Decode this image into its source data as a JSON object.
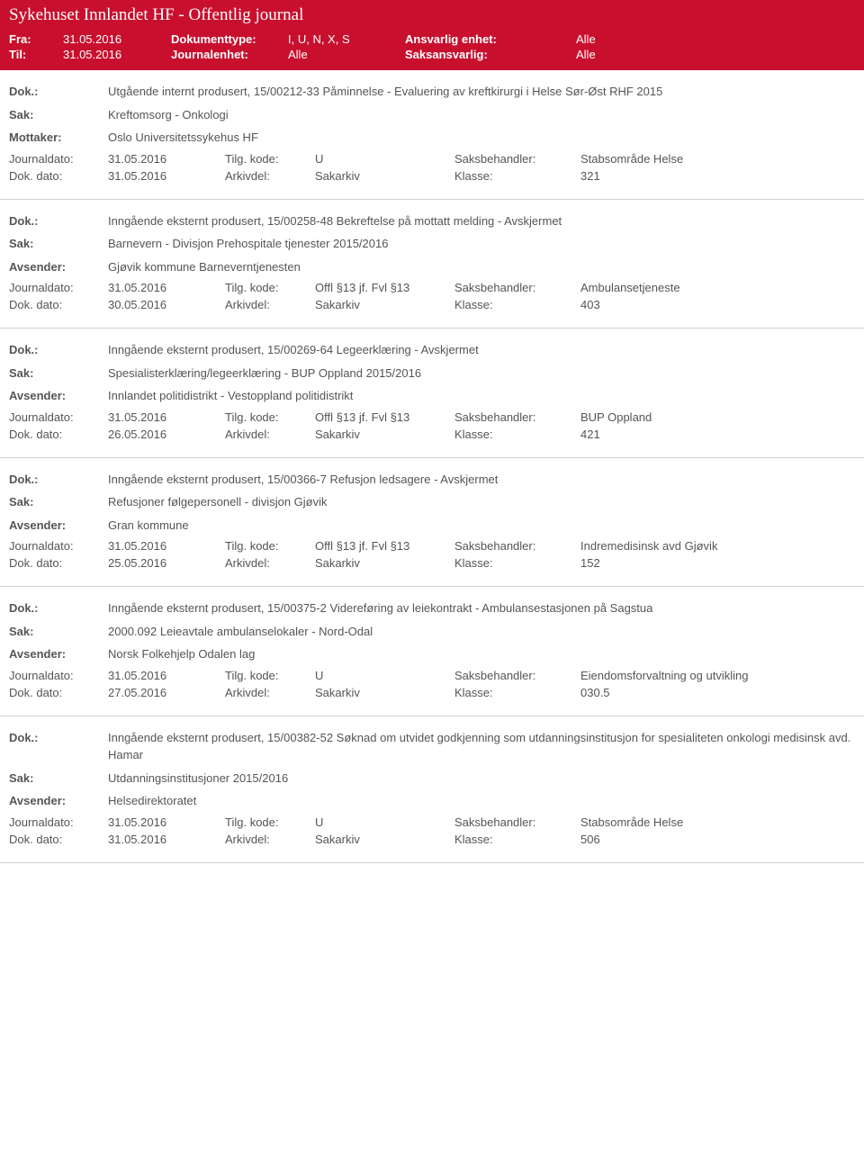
{
  "header": {
    "title": "Sykehuset Innlandet HF - Offentlig journal",
    "fra_label": "Fra:",
    "fra_val": "31.05.2016",
    "til_label": "Til:",
    "til_val": "31.05.2016",
    "dokumenttype_label": "Dokumenttype:",
    "dokumenttype_val": "I, U, N, X, S",
    "journalenhet_label": "Journalenhet:",
    "journalenhet_val": "Alle",
    "ansvarlig_label": "Ansvarlig enhet:",
    "ansvarlig_val": "Alle",
    "saksansvarlig_label": "Saksansvarlig:",
    "saksansvarlig_val": "Alle"
  },
  "labels": {
    "dok": "Dok.:",
    "sak": "Sak:",
    "mottaker": "Mottaker:",
    "avsender": "Avsender:",
    "journaldato": "Journaldato:",
    "tilgkode": "Tilg. kode:",
    "saksbehandler": "Saksbehandler:",
    "dokdato": "Dok. dato:",
    "arkivdel": "Arkivdel:",
    "klasse": "Klasse:"
  },
  "entries": [
    {
      "dok": "Utgående internt produsert, 15/00212-33 Påminnelse - Evaluering av kreftkirurgi i Helse Sør-Øst RHF 2015",
      "sak": "Kreftomsorg - Onkologi",
      "sender_label": "Mottaker:",
      "sender": "Oslo Universitetssykehus HF",
      "journaldato": "31.05.2016",
      "tilgkode": "U",
      "saksbehandler": "Stabsområde Helse",
      "dokdato": "31.05.2016",
      "arkivdel": "Sakarkiv",
      "klasse": "321"
    },
    {
      "dok": "Inngående eksternt produsert, 15/00258-48 Bekreftelse på mottatt melding - Avskjermet",
      "sak": "Barnevern - Divisjon Prehospitale tjenester 2015/2016",
      "sender_label": "Avsender:",
      "sender": "Gjøvik kommune Barneverntjenesten",
      "journaldato": "31.05.2016",
      "tilgkode": "Offl §13 jf. Fvl §13",
      "saksbehandler": "Ambulansetjeneste",
      "dokdato": "30.05.2016",
      "arkivdel": "Sakarkiv",
      "klasse": "403"
    },
    {
      "dok": "Inngående eksternt produsert, 15/00269-64 Legeerklæring - Avskjermet",
      "sak": "Spesialisterklæring/legeerklæring - BUP Oppland 2015/2016",
      "sender_label": "Avsender:",
      "sender": "Innlandet politidistrikt - Vestoppland politidistrikt",
      "journaldato": "31.05.2016",
      "tilgkode": "Offl §13 jf. Fvl §13",
      "saksbehandler": "BUP Oppland",
      "dokdato": "26.05.2016",
      "arkivdel": "Sakarkiv",
      "klasse": "421"
    },
    {
      "dok": "Inngående eksternt produsert, 15/00366-7 Refusjon ledsagere - Avskjermet",
      "sak": "Refusjoner følgepersonell - divisjon Gjøvik",
      "sender_label": "Avsender:",
      "sender": "Gran kommune",
      "journaldato": "31.05.2016",
      "tilgkode": "Offl §13 jf. Fvl §13",
      "saksbehandler": "Indremedisinsk avd Gjøvik",
      "dokdato": "25.05.2016",
      "arkivdel": "Sakarkiv",
      "klasse": "152"
    },
    {
      "dok": "Inngående eksternt produsert, 15/00375-2 Videreføring av leiekontrakt - Ambulansestasjonen på Sagstua",
      "sak": "2000.092 Leieavtale ambulanselokaler - Nord-Odal",
      "sender_label": "Avsender:",
      "sender": "Norsk Folkehjelp Odalen lag",
      "journaldato": "31.05.2016",
      "tilgkode": "U",
      "saksbehandler": "Eiendomsforvaltning og utvikling",
      "dokdato": "27.05.2016",
      "arkivdel": "Sakarkiv",
      "klasse": "030.5"
    },
    {
      "dok": "Inngående eksternt produsert, 15/00382-52 Søknad om utvidet godkjenning som utdanningsinstitusjon for spesialiteten onkologi medisinsk avd. Hamar",
      "sak": "Utdanningsinstitusjoner 2015/2016",
      "sender_label": "Avsender:",
      "sender": "Helsedirektoratet",
      "journaldato": "31.05.2016",
      "tilgkode": "U",
      "saksbehandler": "Stabsområde Helse",
      "dokdato": "31.05.2016",
      "arkivdel": "Sakarkiv",
      "klasse": "506"
    }
  ]
}
